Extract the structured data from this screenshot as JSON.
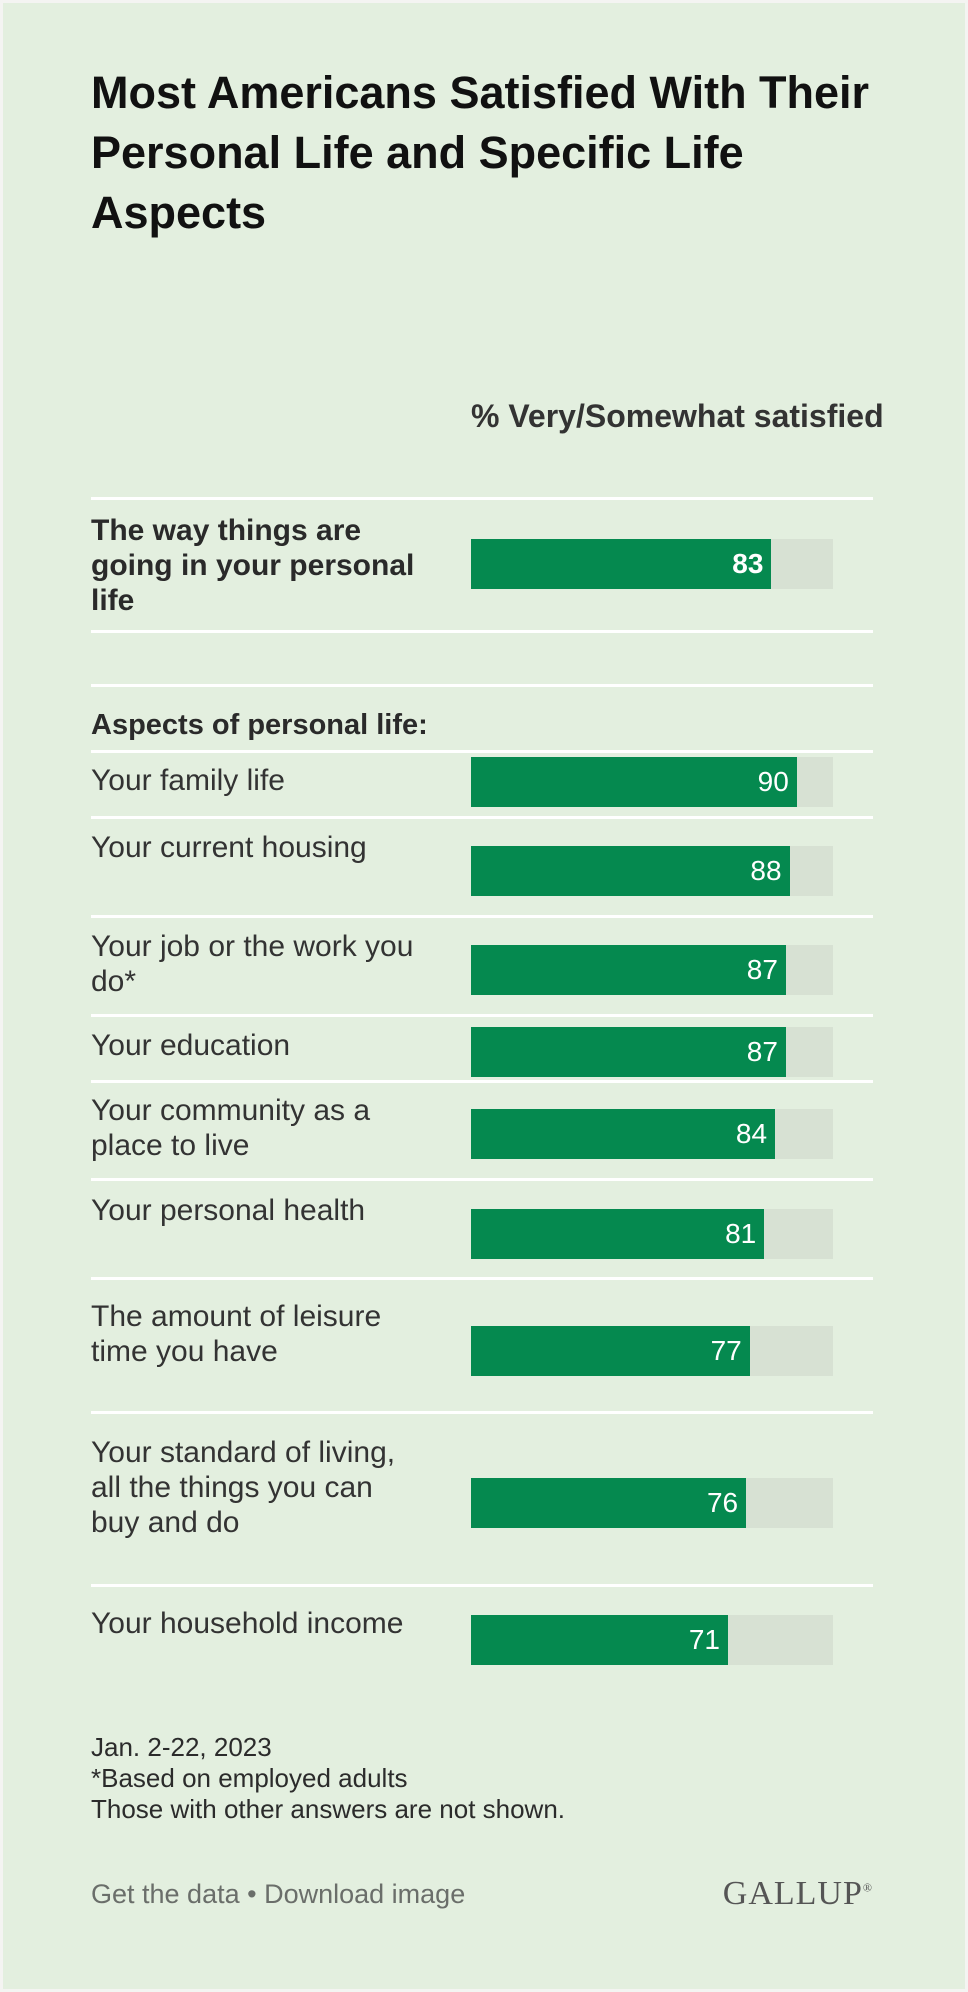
{
  "title": "Most Americans Satisfied With Their Personal Life and Specific Life Aspects",
  "column_header": "% Very/Somewhat satisfied",
  "section_label": "Aspects of personal life:",
  "footnotes": [
    "Jan. 2-22, 2023",
    "*Based on employed adults",
    "Those with other answers are not shown."
  ],
  "footer": {
    "get_data": "Get the data",
    "separator": "•",
    "download": "Download image",
    "logo": "GALLUP",
    "logo_mark": "®"
  },
  "colors": {
    "background": "#e3efdf",
    "bar": "#05894f",
    "track": "#d7e1d3"
  },
  "chart_data": {
    "type": "bar",
    "orientation": "horizontal",
    "xlim": [
      0,
      100
    ],
    "series": [
      {
        "name": "% Very/Somewhat satisfied",
        "values": [
          83,
          90,
          88,
          87,
          87,
          84,
          81,
          77,
          76,
          71
        ]
      }
    ],
    "categories": [
      "The way things are going in your personal life",
      "Your family life",
      "Your current housing",
      "Your job or the work you do*",
      "Your education",
      "Your community as a place to live",
      "Your personal health",
      "The amount of leisure time you have",
      "Your standard of living, all the things you can buy and do",
      "Your household income"
    ],
    "rows": [
      {
        "label": "The way things are going in your personal life",
        "value": 83
      },
      {
        "label": "Your family life",
        "value": 90
      },
      {
        "label": "Your current housing",
        "value": 88
      },
      {
        "label": "Your job or the work you do*",
        "value": 87
      },
      {
        "label": "Your education",
        "value": 87
      },
      {
        "label": "Your community as a place to live",
        "value": 84
      },
      {
        "label": "Your personal health",
        "value": 81
      },
      {
        "label": "The amount of leisure time you have",
        "value": 77
      },
      {
        "label": "Your standard of living, all the things you can buy and do",
        "value": 76
      },
      {
        "label": "Your household income",
        "value": 71
      }
    ]
  }
}
